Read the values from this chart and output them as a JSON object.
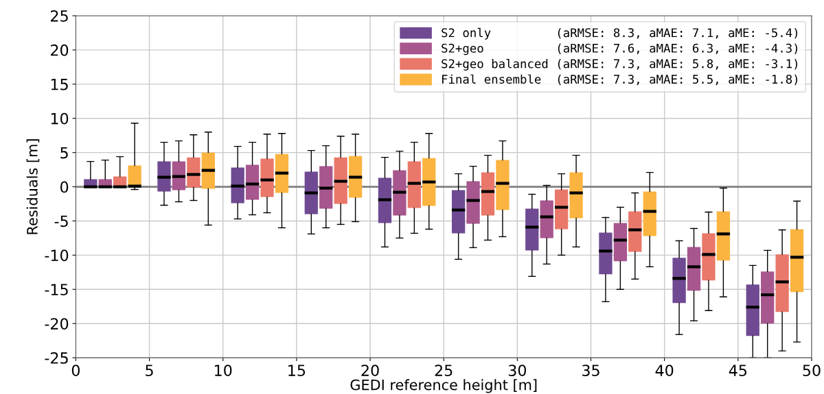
{
  "chart_data": {
    "type": "box",
    "xlabel": "GEDI reference height [m]",
    "ylabel": "Residuals [m]",
    "xlim": [
      0,
      50
    ],
    "xticks": [
      0,
      5,
      10,
      15,
      20,
      25,
      30,
      35,
      40,
      45,
      50
    ],
    "ylim": [
      -25,
      25
    ],
    "yticks": [
      -25,
      -20,
      -15,
      -10,
      -5,
      0,
      5,
      10,
      15,
      20,
      25
    ],
    "grid": true,
    "legend": "top right",
    "ref_lines": [
      {
        "axis": "y",
        "value": 0,
        "color": "#808080",
        "line_style": "solid"
      }
    ],
    "series": [
      {
        "name": "S2 only         (aRMSE: 8.3, aMAE: 7.1, aME: -5.4)",
        "color": "#6f4a92",
        "x": [
          1,
          6,
          11,
          16,
          21,
          26,
          31,
          36,
          41,
          46
        ],
        "boxes": [
          {
            "low": 0,
            "q1": 0,
            "median": 0,
            "q3": 1.1,
            "high": 3.7
          },
          {
            "low": -2.7,
            "q1": -0.7,
            "median": 1.4,
            "q3": 3.7,
            "high": 6.5
          },
          {
            "low": -4.7,
            "q1": -2.4,
            "median": 0.1,
            "q3": 2.8,
            "high": 5.9
          },
          {
            "low": -6.9,
            "q1": -4.0,
            "median": -0.9,
            "q3": 2.2,
            "high": 5.3
          },
          {
            "low": -8.8,
            "q1": -5.3,
            "median": -1.9,
            "q3": 1.3,
            "high": 4.3
          },
          {
            "low": -10.6,
            "q1": -6.8,
            "median": -3.4,
            "q3": -0.5,
            "high": 1.9
          },
          {
            "low": -13.1,
            "q1": -9.3,
            "median": -5.9,
            "q3": -3.2,
            "high": -1.1
          },
          {
            "low": -16.8,
            "q1": -12.8,
            "median": -9.4,
            "q3": -6.7,
            "high": -4.5
          },
          {
            "low": -21.6,
            "q1": -17.0,
            "median": -13.4,
            "q3": -10.4,
            "high": -7.9
          },
          {
            "low": -25,
            "q1": -21.8,
            "median": -17.6,
            "q3": -14.3,
            "high": -11.5
          }
        ]
      },
      {
        "name": "S2+geo          (aRMSE: 7.6, aMAE: 6.3, aME: -4.3)",
        "color": "#a8568e",
        "x": [
          2,
          7,
          12,
          17,
          22,
          27,
          32,
          37,
          42,
          47
        ],
        "boxes": [
          {
            "low": 0,
            "q1": 0,
            "median": 0,
            "q3": 1.1,
            "high": 3.9
          },
          {
            "low": -2.2,
            "q1": -0.5,
            "median": 1.5,
            "q3": 3.7,
            "high": 6.7
          },
          {
            "low": -4.1,
            "q1": -1.9,
            "median": 0.4,
            "q3": 3.2,
            "high": 6.5
          },
          {
            "low": -6.0,
            "q1": -3.2,
            "median": -0.2,
            "q3": 3.0,
            "high": 6.0
          },
          {
            "low": -7.5,
            "q1": -4.2,
            "median": -0.8,
            "q3": 2.4,
            "high": 5.2
          },
          {
            "low": -8.9,
            "q1": -5.4,
            "median": -2.0,
            "q3": 0.8,
            "high": 3.0
          },
          {
            "low": -11.3,
            "q1": -7.5,
            "median": -4.4,
            "q3": -2.0,
            "high": 0.2
          },
          {
            "low": -15.0,
            "q1": -10.9,
            "median": -7.8,
            "q3": -5.3,
            "high": -3.0
          },
          {
            "low": -19.6,
            "q1": -15.2,
            "median": -11.7,
            "q3": -8.8,
            "high": -6.1
          },
          {
            "low": -25,
            "q1": -20.0,
            "median": -15.8,
            "q3": -12.4,
            "high": -9.3
          }
        ]
      },
      {
        "name": "S2+geo balanced (aRMSE: 7.3, aMAE: 5.8, aME: -3.1)",
        "color": "#e9786a",
        "x": [
          3,
          8,
          13,
          18,
          23,
          28,
          33,
          38,
          43,
          48
        ],
        "boxes": [
          {
            "low": 0,
            "q1": 0,
            "median": 0,
            "q3": 1.5,
            "high": 4.4
          },
          {
            "low": -2.0,
            "q1": -0.1,
            "median": 1.8,
            "q3": 4.3,
            "high": 7.6
          },
          {
            "low": -3.8,
            "q1": -1.5,
            "median": 1.0,
            "q3": 4.1,
            "high": 7.7
          },
          {
            "low": -5.5,
            "q1": -2.5,
            "median": 0.8,
            "q3": 4.3,
            "high": 7.4
          },
          {
            "low": -6.8,
            "q1": -3.1,
            "median": 0.5,
            "q3": 3.7,
            "high": 6.5
          },
          {
            "low": -7.8,
            "q1": -4.2,
            "median": -0.7,
            "q3": 2.1,
            "high": 4.6
          },
          {
            "low": -10.0,
            "q1": -6.2,
            "median": -3.0,
            "q3": -0.4,
            "high": 1.9
          },
          {
            "low": -13.5,
            "q1": -9.5,
            "median": -6.3,
            "q3": -3.6,
            "high": -0.9
          },
          {
            "low": -18.1,
            "q1": -13.7,
            "median": -9.9,
            "q3": -6.8,
            "high": -3.7
          },
          {
            "low": -24.0,
            "q1": -18.3,
            "median": -13.9,
            "q3": -9.9,
            "high": -6.3
          }
        ]
      },
      {
        "name": "Final ensemble  (aRMSE: 7.3, aMAE: 5.5, aME: -1.8)",
        "color": "#fbb440",
        "x": [
          4,
          9,
          14,
          19,
          24,
          29,
          34,
          39,
          44,
          49
        ],
        "boxes": [
          {
            "low": -0.4,
            "q1": 0,
            "median": 0.1,
            "q3": 3.1,
            "high": 9.3
          },
          {
            "low": -5.6,
            "q1": -0.3,
            "median": 2.4,
            "q3": 5.0,
            "high": 8.0
          },
          {
            "low": -6.0,
            "q1": -0.9,
            "median": 2.0,
            "q3": 4.8,
            "high": 7.8
          },
          {
            "low": -5.1,
            "q1": -1.6,
            "median": 1.4,
            "q3": 4.5,
            "high": 7.7
          },
          {
            "low": -6.2,
            "q1": -2.8,
            "median": 0.7,
            "q3": 4.2,
            "high": 7.8
          },
          {
            "low": -7.3,
            "q1": -3.4,
            "median": 0.5,
            "q3": 3.9,
            "high": 6.7
          },
          {
            "low": -8.8,
            "q1": -4.6,
            "median": -0.9,
            "q3": 2.1,
            "high": 4.6
          },
          {
            "low": -11.7,
            "q1": -7.2,
            "median": -3.6,
            "q3": -0.7,
            "high": 2.1
          },
          {
            "low": -16.1,
            "q1": -10.8,
            "median": -6.9,
            "q3": -3.6,
            "high": -0.2
          },
          {
            "low": -22.7,
            "q1": -15.4,
            "median": -10.3,
            "q3": -6.2,
            "high": -2.1
          }
        ]
      }
    ]
  }
}
